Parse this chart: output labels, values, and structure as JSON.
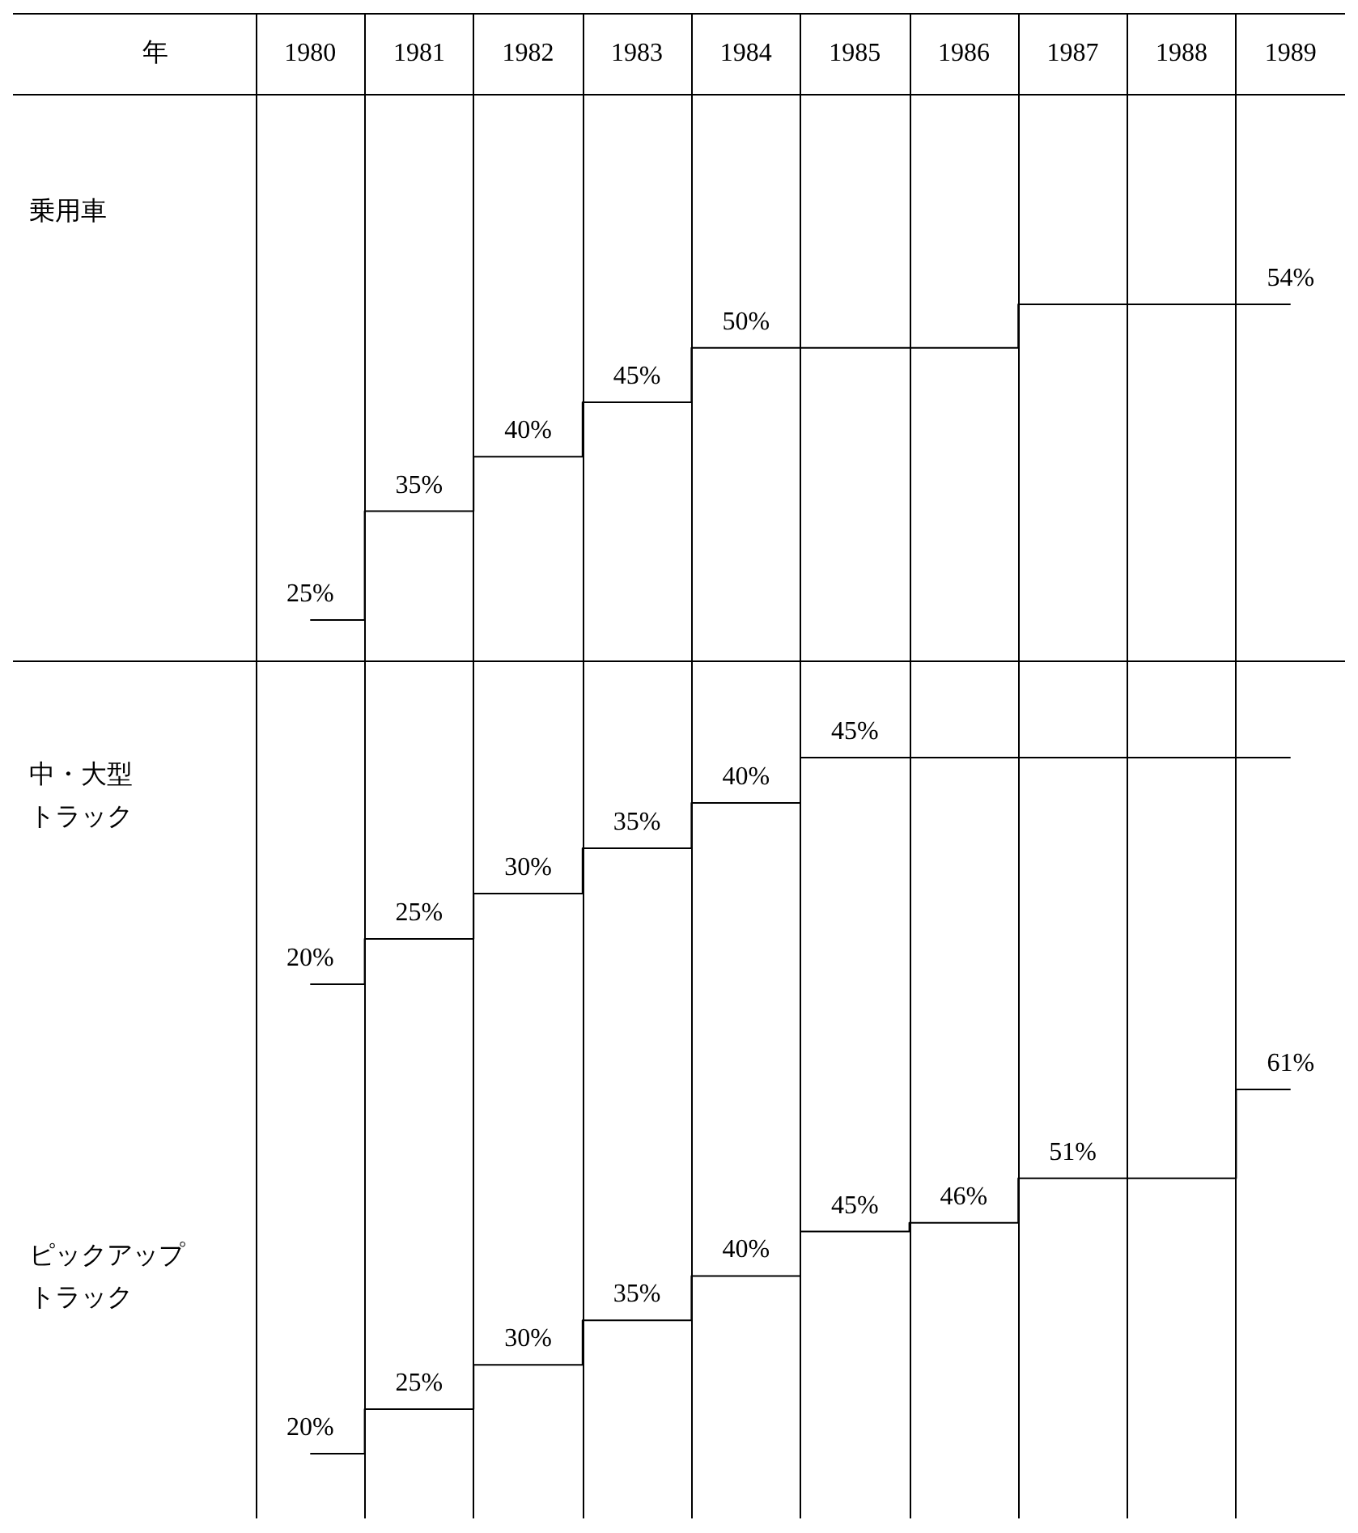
{
  "chart_data": [
    {
      "type": "step",
      "xlabel": "年",
      "ylabel": "乗用車",
      "categories": [
        "1980",
        "1981",
        "1982",
        "1983",
        "1984",
        "1985",
        "1986",
        "1987",
        "1988",
        "1989"
      ],
      "tick_labels": "x",
      "grid": "x",
      "color": "#000000",
      "values": [
        25,
        35,
        40,
        45,
        50,
        50,
        50,
        54,
        54,
        54
      ],
      "value_labels": [
        "25%",
        "35%",
        "40%",
        "45%",
        "50%",
        null,
        null,
        null,
        null,
        "54%"
      ]
    },
    {
      "type": "step",
      "ylabel": "中・大型トラック",
      "categories": [
        null,
        null,
        null,
        null,
        null,
        null,
        null,
        null,
        null,
        null
      ],
      "tick_labels": false,
      "grid": "x",
      "color": "#000000",
      "values": [
        20,
        25,
        30,
        35,
        40,
        45,
        45,
        45,
        45,
        45
      ],
      "value_labels": [
        "20%",
        "25%",
        "30%",
        "35%",
        "40%",
        "45%",
        null,
        null,
        null,
        null
      ]
    },
    {
      "type": "step",
      "ylabel": "ピックアップトラック",
      "categories": [
        null,
        null,
        null,
        null,
        null,
        null,
        null,
        null,
        null,
        null
      ],
      "tick_labels": false,
      "grid": "x",
      "color": "#000000",
      "values": [
        20,
        25,
        30,
        35,
        40,
        45,
        46,
        51,
        51,
        61
      ],
      "value_labels": [
        "20%",
        "25%",
        "30%",
        "35%",
        "40%",
        "45%",
        "46%",
        "51%",
        null,
        "61%"
      ]
    }
  ]
}
